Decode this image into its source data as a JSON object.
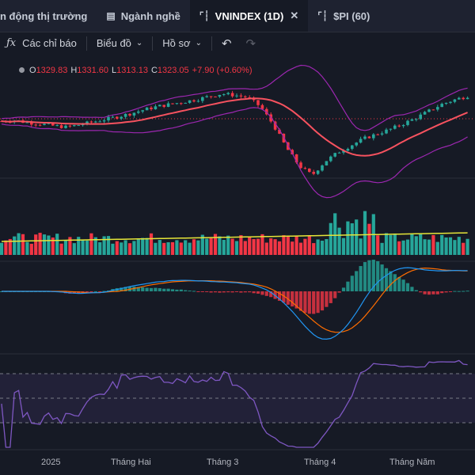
{
  "tabs": [
    {
      "label": "n động thị trường",
      "icon": "",
      "active": false
    },
    {
      "label": "Ngành nghề",
      "icon": "list-icon",
      "active": false
    },
    {
      "label": "VNINDEX (1D)",
      "icon": "chart-icon",
      "active": true
    },
    {
      "label": "$PI (60)",
      "icon": "chart-icon",
      "active": false
    }
  ],
  "toolbar": {
    "indicators_label": "Các chỉ báo",
    "chart_type_label": "Biểu đồ",
    "profile_label": "Hồ sơ"
  },
  "ohlc": {
    "o_label": "O",
    "o": "1329.83",
    "h_label": "H",
    "h": "1331.60",
    "l_label": "L",
    "l": "1313.13",
    "c_label": "C",
    "c": "1323.05",
    "change": "+7.90 (+0.60%)"
  },
  "x_axis": [
    "2025",
    "Tháng Hai",
    "Tháng 3",
    "Tháng 4",
    "Tháng Năm"
  ],
  "colors": {
    "up": "#26a69a",
    "down": "#f23645",
    "ma": "#f7525f",
    "band": "#9c27b0",
    "vol_ma": "#e5e538",
    "macd": "#2196f3",
    "signal": "#ff6d00",
    "rsi": "#7e57c2"
  },
  "chart_data": {
    "type": "candlestick",
    "title": "",
    "x": [
      "2025",
      "Tháng Hai",
      "Tháng 3",
      "Tháng 4",
      "Tháng Năm"
    ],
    "close_path": [
      1268,
      1270,
      1265,
      1262,
      1258,
      1255,
      1260,
      1266,
      1272,
      1278,
      1285,
      1293,
      1300,
      1305,
      1310,
      1315,
      1322,
      1328,
      1325,
      1320,
      1300,
      1260,
      1210,
      1170,
      1150,
      1180,
      1200,
      1215,
      1230,
      1240,
      1250,
      1262,
      1275,
      1290,
      1305,
      1315,
      1323.05
    ],
    "last": {
      "open": 1329.83,
      "high": 1331.6,
      "low": 1313.13,
      "close": 1323.05
    }
  }
}
